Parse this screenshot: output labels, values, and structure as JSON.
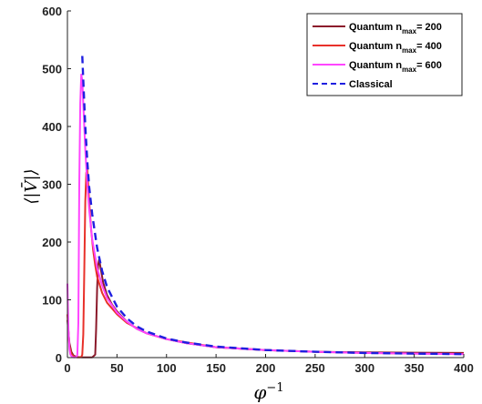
{
  "chart_data": {
    "type": "line",
    "xlabel": "φ",
    "xlabel_sup": "−1",
    "ylabel": "⟨|V̄|⟩",
    "xlim": [
      0,
      400
    ],
    "ylim": [
      0,
      600
    ],
    "xticks": [
      0,
      50,
      100,
      150,
      200,
      250,
      300,
      350,
      400
    ],
    "yticks": [
      0,
      100,
      200,
      300,
      400,
      500,
      600
    ],
    "grid": false,
    "legend_position": "top-right",
    "series": [
      {
        "name_parts": [
          "Quantum n",
          "max",
          "= 200"
        ],
        "color": "#8b1a2b",
        "dash": "solid",
        "x": [
          0,
          1,
          2,
          4,
          6,
          8,
          10,
          15,
          20,
          25,
          28,
          29,
          30,
          31,
          32,
          34,
          36,
          40,
          45,
          50,
          60,
          70,
          80,
          100,
          120,
          150,
          200,
          250,
          300,
          350,
          400
        ],
        "y": [
          65,
          45,
          25,
          10,
          4,
          2,
          1,
          0.5,
          0.5,
          0.5,
          5,
          50,
          120,
          160,
          170,
          150,
          130,
          108,
          92,
          80,
          62,
          50,
          42,
          32,
          25,
          18,
          13,
          10,
          9,
          8.5,
          8
        ]
      },
      {
        "name_parts": [
          "Quantum n",
          "max",
          "= 400"
        ],
        "color": "#e8312a",
        "dash": "solid",
        "x": [
          0,
          1,
          2,
          4,
          6,
          8,
          10,
          12,
          14,
          15,
          16,
          17,
          18,
          19,
          20,
          21,
          22,
          24,
          26,
          28,
          30,
          35,
          40,
          50,
          60,
          80,
          100,
          150,
          200,
          250,
          300,
          350,
          400
        ],
        "y": [
          75,
          45,
          20,
          6,
          2,
          1,
          0.5,
          0.5,
          1,
          5,
          40,
          150,
          270,
          320,
          325,
          300,
          270,
          220,
          185,
          160,
          140,
          112,
          95,
          75,
          60,
          42,
          32,
          18,
          13,
          10,
          8,
          7,
          6.5
        ]
      },
      {
        "name_parts": [
          "Quantum n",
          "max",
          "= 600"
        ],
        "color": "#ff45ff",
        "dash": "solid",
        "x": [
          0,
          0.5,
          1,
          2,
          3,
          5,
          7,
          9,
          10,
          11,
          12,
          13,
          14,
          15,
          16,
          18,
          20,
          22,
          25,
          30,
          35,
          40,
          50,
          60,
          70,
          80,
          100,
          120,
          150,
          200,
          250,
          300,
          350,
          400
        ],
        "y": [
          128,
          90,
          50,
          15,
          5,
          1,
          0.5,
          1,
          5,
          60,
          300,
          440,
          490,
          480,
          440,
          360,
          300,
          255,
          205,
          155,
          125,
          103,
          78,
          62,
          50,
          42,
          32,
          25,
          18,
          13,
          10,
          8,
          7,
          6
        ]
      },
      {
        "name_parts": [
          "Classical"
        ],
        "color": "#1f1fe0",
        "dash": "dashed",
        "x": [
          15,
          16,
          18,
          20,
          22,
          25,
          30,
          35,
          40,
          50,
          60,
          70,
          80,
          100,
          120,
          150,
          200,
          250,
          300,
          350,
          400
        ],
        "y": [
          522,
          480,
          400,
          340,
          295,
          248,
          190,
          150,
          122,
          88,
          68,
          54,
          45,
          33,
          26,
          19,
          13,
          10,
          8,
          7,
          6
        ]
      }
    ]
  }
}
